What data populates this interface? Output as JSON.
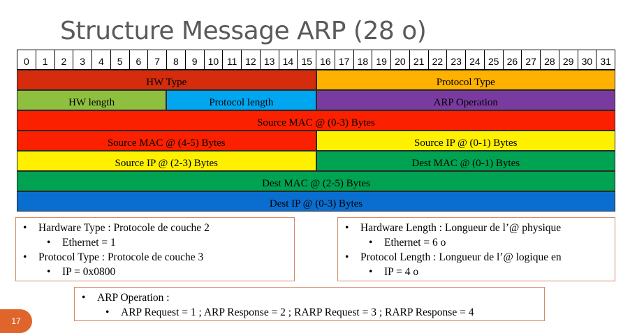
{
  "slide": {
    "title": "Structure Message ARP (28 o)",
    "number": "17"
  },
  "bits": [
    "0",
    "1",
    "2",
    "3",
    "4",
    "5",
    "6",
    "7",
    "8",
    "9",
    "10",
    "11",
    "12",
    "13",
    "14",
    "15",
    "16",
    "17",
    "18",
    "19",
    "20",
    "21",
    "22",
    "23",
    "24",
    "25",
    "26",
    "27",
    "28",
    "29",
    "30",
    "31"
  ],
  "rows": [
    {
      "fields": [
        {
          "label": "HW Type",
          "bits": 16,
          "color": "#d42c0c"
        },
        {
          "label": "Protocol Type",
          "bits": 16,
          "color": "#ffb100"
        }
      ]
    },
    {
      "fields": [
        {
          "label": "HW length",
          "bits": 8,
          "color": "#8fbf3f"
        },
        {
          "label": "Protocol length",
          "bits": 8,
          "color": "#00a6f0"
        },
        {
          "label": "ARP Operation",
          "bits": 16,
          "color": "#7a3ba0"
        }
      ]
    },
    {
      "fields": [
        {
          "label": "Source MAC @ (0-3) Bytes",
          "bits": 32,
          "color": "#fa2000"
        }
      ]
    },
    {
      "fields": [
        {
          "label": "Source MAC @ (4-5) Bytes",
          "bits": 16,
          "color": "#fa2000"
        },
        {
          "label": "Source IP @ (0-1) Bytes",
          "bits": 16,
          "color": "#fff000"
        }
      ]
    },
    {
      "fields": [
        {
          "label": "Source IP @ (2-3) Bytes",
          "bits": 16,
          "color": "#fff000"
        },
        {
          "label": "Dest MAC @ (0-1) Bytes",
          "bits": 16,
          "color": "#00a351"
        }
      ]
    },
    {
      "fields": [
        {
          "label": "Dest MAC @ (2-5) Bytes",
          "bits": 32,
          "color": "#00a351"
        }
      ]
    },
    {
      "fields": [
        {
          "label": "Dest IP @ (0-3) Bytes",
          "bits": 32,
          "color": "#0a6ed0"
        }
      ]
    }
  ],
  "notes": {
    "left": [
      {
        "level": 1,
        "text": "Hardware Type : Protocole de couche 2"
      },
      {
        "level": 2,
        "text": "Ethernet = 1"
      },
      {
        "level": 1,
        "text": "Protocol Type : Protocole de couche 3"
      },
      {
        "level": 2,
        "text": "IP = 0x0800"
      }
    ],
    "right": [
      {
        "level": 1,
        "text": "Hardware Length : Longueur de l’@ physique"
      },
      {
        "level": 2,
        "text": "Ethernet = 6 o"
      },
      {
        "level": 1,
        "text": "Protocol Length : Longueur de l’@ logique en"
      },
      {
        "level": 2,
        "text": "IP = 4 o"
      }
    ],
    "bottom": [
      {
        "level": 1,
        "text": "ARP Operation :"
      },
      {
        "level": 2,
        "text": "ARP Request = 1 ; ARP Response = 2 ; RARP Request = 3 ; RARP Response = 4"
      }
    ]
  }
}
